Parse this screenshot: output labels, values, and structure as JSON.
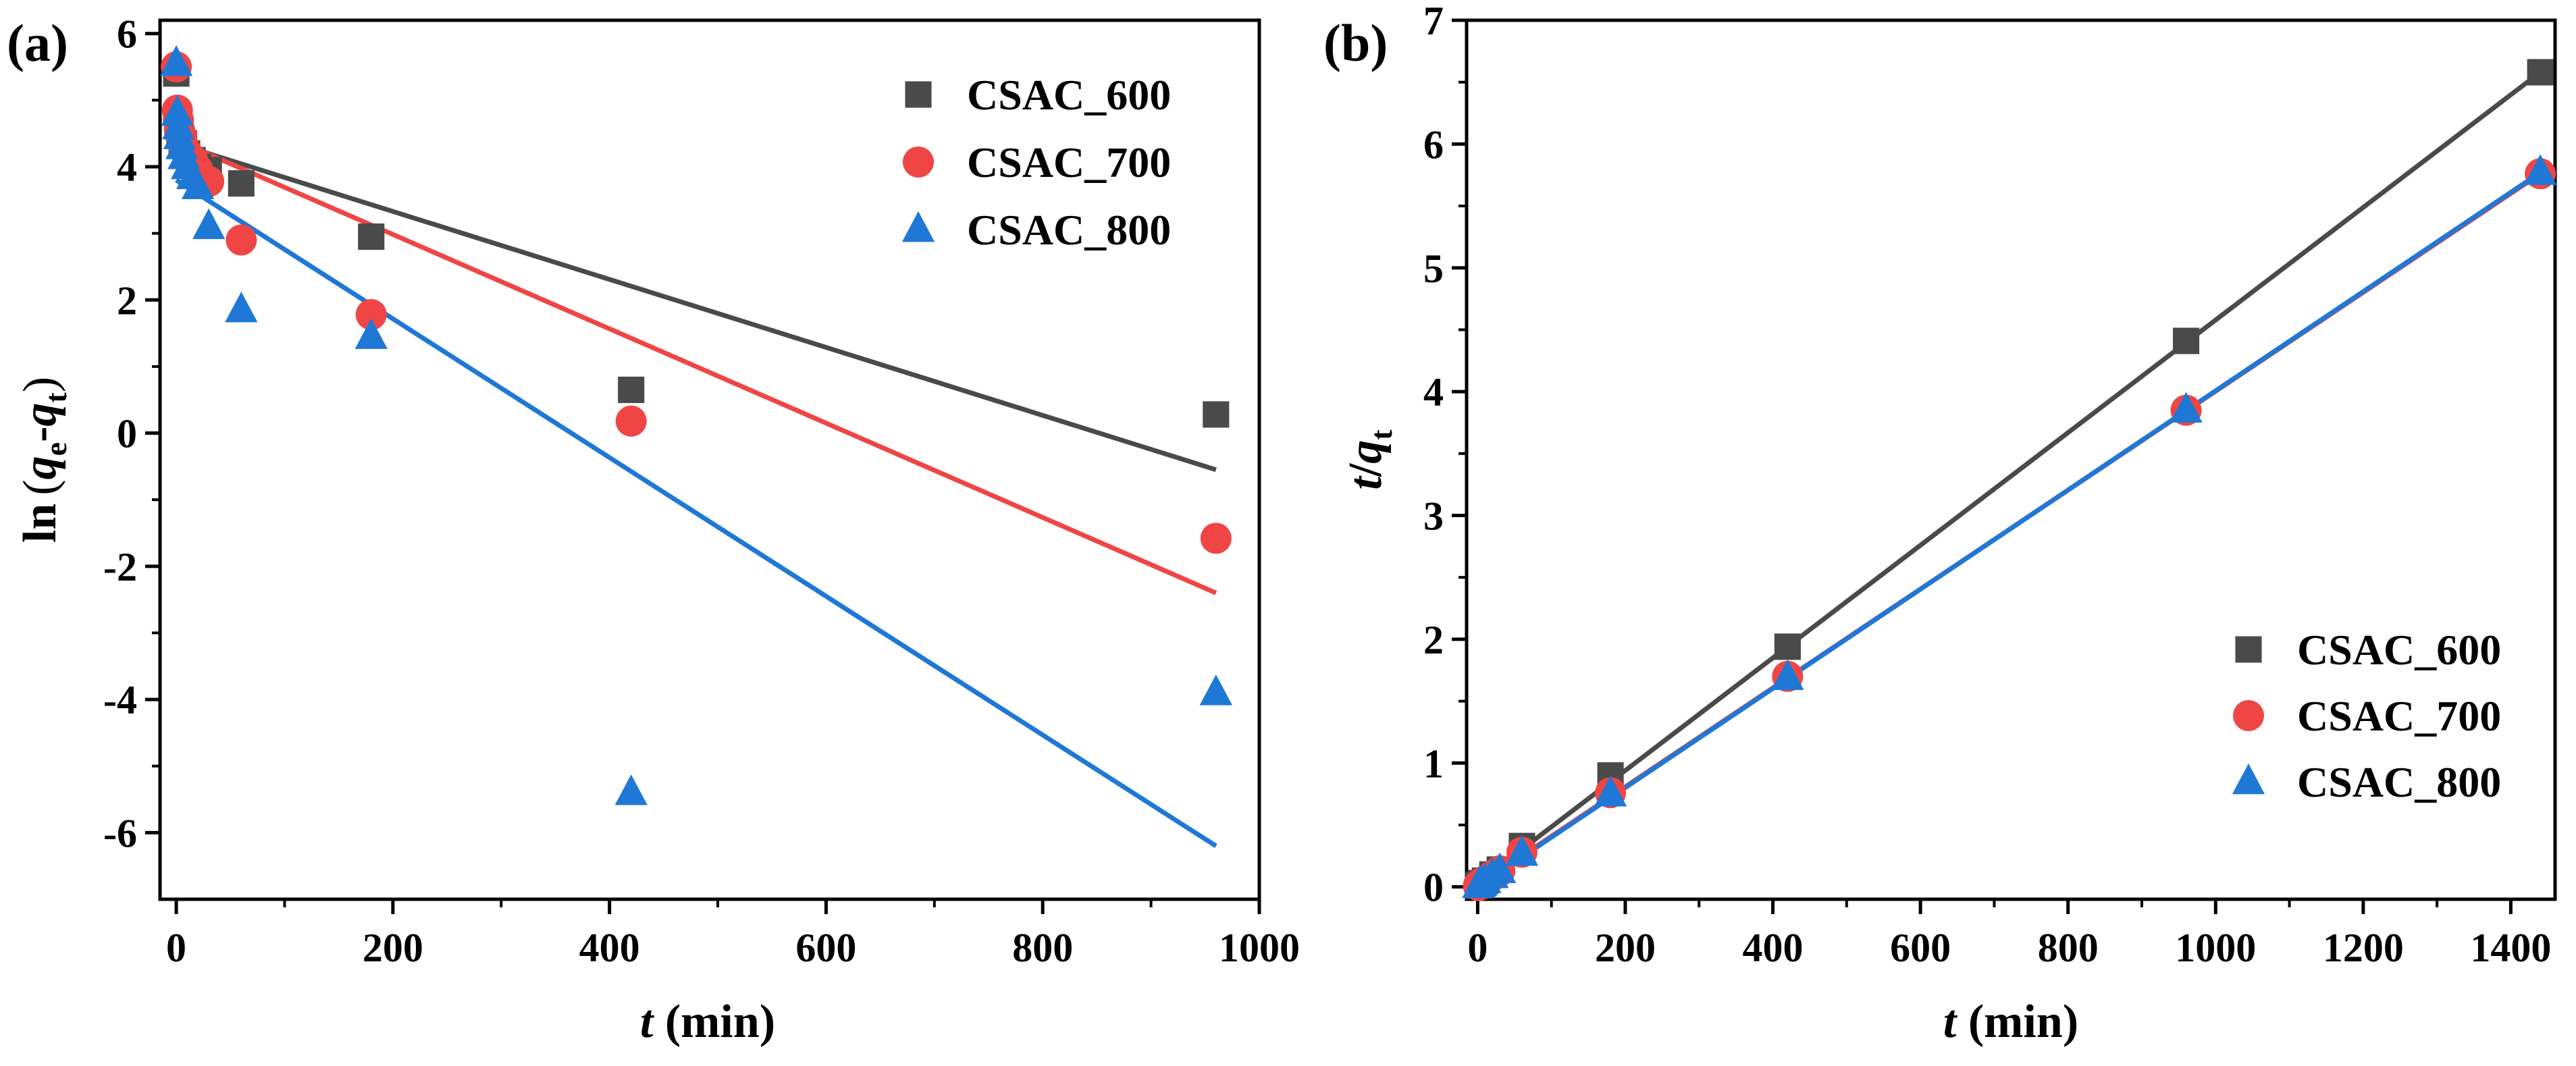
{
  "chart_data": [
    {
      "type": "scatter",
      "panel_label": "(a)",
      "title": "",
      "xlabel": {
        "var": "t",
        "unit": " (min)"
      },
      "ylabel": {
        "prefix": "ln",
        "open": "(",
        "q": "q",
        "e": "e",
        "dash": "-",
        "t": "t",
        "close": ")"
      },
      "xlim": [
        -15,
        1000
      ],
      "ylim": [
        -7,
        6.2
      ],
      "xticks": [
        0,
        200,
        400,
        600,
        800,
        1000
      ],
      "xtick_labels": [
        "0",
        "200",
        "400",
        "600",
        "800",
        "1000"
      ],
      "yticks": [
        -6,
        -4,
        -2,
        0,
        2,
        4,
        6
      ],
      "ytick_labels": [
        "-6",
        "-4",
        "-2",
        "0",
        "2",
        "4",
        "6"
      ],
      "legend": {
        "position": "top-right",
        "entries": [
          "CSAC_600",
          "CSAC_700",
          "CSAC_800"
        ]
      },
      "series": [
        {
          "name": "CSAC_600",
          "color": "#4a4a4a",
          "marker": "square",
          "x": [
            0,
            1,
            2,
            3,
            5,
            7,
            10,
            15,
            20,
            30,
            60,
            180,
            420,
            960
          ],
          "y": [
            5.4,
            4.75,
            4.6,
            4.5,
            4.4,
            4.35,
            4.2,
            4.1,
            4.0,
            3.95,
            3.75,
            2.95,
            0.65,
            0.28
          ],
          "fit": {
            "x": [
              0,
              960
            ],
            "y": [
              4.35,
              -0.55
            ]
          }
        },
        {
          "name": "CSAC_700",
          "color": "#f04545",
          "marker": "circle",
          "x": [
            0,
            1,
            2,
            3,
            5,
            7,
            10,
            15,
            20,
            30,
            60,
            180,
            420,
            960
          ],
          "y": [
            5.5,
            4.85,
            4.7,
            4.55,
            4.45,
            4.3,
            4.2,
            4.1,
            3.95,
            3.78,
            2.9,
            1.78,
            0.18,
            -1.58
          ],
          "fit": {
            "x": [
              0,
              960
            ],
            "y": [
              4.4,
              -2.4
            ]
          }
        },
        {
          "name": "CSAC_800",
          "color": "#1f78d6",
          "marker": "triangle",
          "x": [
            0,
            1,
            2,
            3,
            5,
            7,
            10,
            15,
            20,
            30,
            60,
            180,
            420,
            960
          ],
          "y": [
            5.55,
            4.8,
            4.6,
            4.45,
            4.3,
            4.15,
            4.0,
            3.85,
            3.7,
            3.1,
            1.85,
            1.45,
            -5.4,
            -3.9
          ],
          "fit": {
            "x": [
              0,
              960
            ],
            "y": [
              3.8,
              -6.2
            ]
          }
        }
      ]
    },
    {
      "type": "scatter",
      "panel_label": "(b)",
      "title": "",
      "xlabel": {
        "var": "t",
        "unit": " (min)"
      },
      "ylabel": {
        "t": "t",
        "slash": "/",
        "q": "q",
        "sub": "t"
      },
      "xlim": [
        -15,
        1460
      ],
      "ylim": [
        -0.1,
        7
      ],
      "xticks": [
        0,
        200,
        400,
        600,
        800,
        1000,
        1200,
        1400
      ],
      "xtick_labels": [
        "0",
        "200",
        "400",
        "600",
        "800",
        "1000",
        "1200",
        "1400"
      ],
      "yticks": [
        0,
        1,
        2,
        3,
        4,
        5,
        6,
        7
      ],
      "ytick_labels": [
        "0",
        "1",
        "2",
        "3",
        "4",
        "5",
        "6",
        "7"
      ],
      "legend": {
        "position": "bottom-right",
        "entries": [
          "CSAC_600",
          "CSAC_700",
          "CSAC_800"
        ]
      },
      "series": [
        {
          "name": "CSAC_600",
          "color": "#4a4a4a",
          "marker": "square",
          "x": [
            1,
            3,
            5,
            10,
            20,
            30,
            60,
            180,
            420,
            960,
            1440
          ],
          "y": [
            0.01,
            0.02,
            0.03,
            0.05,
            0.1,
            0.14,
            0.33,
            0.9,
            1.94,
            4.41,
            6.58
          ],
          "fit": {
            "x": [
              0,
              1440
            ],
            "y": [
              0.03,
              6.58
            ]
          }
        },
        {
          "name": "CSAC_700",
          "color": "#f04545",
          "marker": "circle",
          "x": [
            1,
            3,
            5,
            10,
            20,
            30,
            60,
            180,
            420,
            960,
            1440
          ],
          "y": [
            0.01,
            0.02,
            0.03,
            0.05,
            0.09,
            0.13,
            0.28,
            0.76,
            1.7,
            3.85,
            5.76
          ],
          "fit": {
            "x": [
              0,
              1440
            ],
            "y": [
              0.01,
              5.76
            ]
          }
        },
        {
          "name": "CSAC_800",
          "color": "#1f78d6",
          "marker": "triangle",
          "x": [
            1,
            3,
            5,
            10,
            20,
            30,
            60,
            180,
            420,
            960,
            1440
          ],
          "y": [
            0.01,
            0.02,
            0.03,
            0.05,
            0.09,
            0.13,
            0.27,
            0.75,
            1.69,
            3.85,
            5.77
          ],
          "fit": {
            "x": [
              0,
              1440
            ],
            "y": [
              0.0,
              5.77
            ]
          }
        }
      ]
    }
  ]
}
